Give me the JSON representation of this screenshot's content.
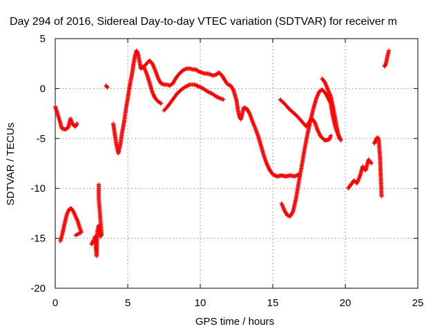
{
  "chart_data": {
    "type": "scatter",
    "title": "Day 294 of 2016, Sidereal Day-to-day VTEC variation (SDTVAR) for receiver m",
    "xlabel": "GPS time / hours",
    "ylabel": "SDTVAR / TECUs",
    "xlim": [
      0,
      25
    ],
    "ylim": [
      -20,
      5
    ],
    "xticks": [
      0,
      5,
      10,
      15,
      20,
      25
    ],
    "yticks": [
      -20,
      -15,
      -10,
      -5,
      0,
      5
    ],
    "grid": true,
    "marker": "+",
    "color": "#ff0000",
    "series": [
      {
        "points": [
          [
            0.0,
            -1.8
          ],
          [
            0.15,
            -2.5
          ],
          [
            0.3,
            -3.2
          ],
          [
            0.45,
            -4.0
          ],
          [
            0.7,
            -4.1
          ],
          [
            0.9,
            -3.9
          ],
          [
            1.05,
            -3.0
          ],
          [
            1.2,
            -3.6
          ],
          [
            1.4,
            -3.8
          ],
          [
            1.5,
            -3.5
          ]
        ]
      },
      {
        "points": [
          [
            0.35,
            -15.3
          ],
          [
            0.5,
            -14.5
          ],
          [
            0.65,
            -13.5
          ],
          [
            0.8,
            -12.6
          ],
          [
            0.95,
            -12.1
          ],
          [
            1.1,
            -12.0
          ],
          [
            1.25,
            -12.3
          ],
          [
            1.4,
            -12.8
          ],
          [
            1.55,
            -13.3
          ],
          [
            1.7,
            -14.0
          ],
          [
            1.8,
            -14.4
          ],
          [
            1.4,
            -14.7
          ]
        ]
      },
      {
        "points": [
          [
            2.5,
            -15.6
          ],
          [
            2.65,
            -15.2
          ],
          [
            2.75,
            -14.8
          ],
          [
            2.85,
            -16.8
          ],
          [
            2.9,
            -14.3
          ],
          [
            3.0,
            -13.7
          ],
          [
            3.1,
            -14.8
          ],
          [
            3.2,
            -14.7
          ],
          [
            3.0,
            -11.0
          ],
          [
            3.0,
            -9.6
          ]
        ]
      },
      {
        "points": [
          [
            3.5,
            0.3
          ],
          [
            3.6,
            0.1
          ],
          [
            3.55,
            0.2
          ]
        ]
      },
      {
        "points": [
          [
            4.0,
            -3.5
          ],
          [
            4.1,
            -4.5
          ],
          [
            4.2,
            -5.5
          ],
          [
            4.35,
            -6.5
          ],
          [
            4.5,
            -5.5
          ],
          [
            4.6,
            -4.5
          ],
          [
            4.75,
            -3.3
          ],
          [
            4.9,
            -1.8
          ],
          [
            5.0,
            -1.0
          ],
          [
            5.1,
            0.0
          ],
          [
            5.2,
            0.8
          ],
          [
            5.3,
            1.5
          ],
          [
            5.4,
            2.5
          ],
          [
            5.5,
            3.3
          ],
          [
            5.6,
            3.8
          ],
          [
            5.7,
            3.5
          ],
          [
            5.8,
            2.8
          ],
          [
            5.9,
            2.0
          ]
        ]
      },
      {
        "points": [
          [
            5.9,
            2.0
          ],
          [
            6.1,
            2.2
          ],
          [
            6.3,
            2.5
          ],
          [
            6.5,
            2.8
          ],
          [
            6.7,
            2.5
          ],
          [
            6.9,
            1.8
          ],
          [
            7.1,
            1.0
          ],
          [
            7.3,
            0.5
          ],
          [
            7.5,
            0.4
          ],
          [
            7.7,
            0.4
          ],
          [
            7.9,
            0.3
          ],
          [
            8.1,
            0.5
          ],
          [
            8.3,
            1.0
          ],
          [
            8.5,
            1.4
          ],
          [
            8.7,
            1.7
          ],
          [
            8.9,
            1.9
          ],
          [
            9.1,
            2.0
          ],
          [
            9.3,
            2.0
          ],
          [
            9.5,
            1.9
          ],
          [
            9.7,
            1.9
          ],
          [
            9.9,
            1.7
          ],
          [
            10.1,
            1.6
          ],
          [
            10.3,
            1.5
          ],
          [
            10.5,
            1.5
          ],
          [
            10.7,
            1.4
          ],
          [
            10.9,
            1.3
          ],
          [
            11.1,
            1.4
          ],
          [
            11.3,
            1.6
          ],
          [
            11.5,
            1.3
          ],
          [
            11.7,
            0.8
          ],
          [
            11.9,
            0.4
          ],
          [
            12.1,
            0.3
          ],
          [
            12.3,
            -0.2
          ],
          [
            12.5,
            -1.2
          ],
          [
            12.6,
            -2.2
          ],
          [
            12.7,
            -2.8
          ],
          [
            12.8,
            -3.1
          ],
          [
            12.9,
            -2.5
          ],
          [
            13.0,
            -1.9
          ],
          [
            13.2,
            -2.0
          ],
          [
            13.4,
            -2.5
          ],
          [
            13.6,
            -3.3
          ],
          [
            13.8,
            -4.0
          ],
          [
            14.0,
            -4.8
          ],
          [
            14.2,
            -5.8
          ],
          [
            14.4,
            -6.8
          ],
          [
            14.6,
            -7.6
          ],
          [
            14.8,
            -8.2
          ],
          [
            15.0,
            -8.6
          ],
          [
            15.3,
            -8.8
          ],
          [
            15.6,
            -8.7
          ],
          [
            15.9,
            -8.8
          ],
          [
            16.2,
            -8.7
          ],
          [
            16.5,
            -8.8
          ],
          [
            16.8,
            -8.6
          ]
        ]
      },
      {
        "points": [
          [
            6.1,
            2.2
          ],
          [
            6.3,
            1.5
          ],
          [
            6.5,
            0.6
          ],
          [
            6.7,
            -0.4
          ],
          [
            6.9,
            -1.0
          ],
          [
            7.1,
            -1.3
          ],
          [
            7.3,
            -1.5
          ]
        ]
      },
      {
        "points": [
          [
            7.5,
            -2.2
          ],
          [
            7.8,
            -1.7
          ],
          [
            8.1,
            -1.1
          ],
          [
            8.4,
            -0.5
          ],
          [
            8.7,
            -0.1
          ],
          [
            9.0,
            0.2
          ],
          [
            9.3,
            0.4
          ],
          [
            9.6,
            0.4
          ],
          [
            9.9,
            0.2
          ],
          [
            10.2,
            0.0
          ],
          [
            10.5,
            -0.3
          ],
          [
            10.8,
            -0.5
          ],
          [
            11.1,
            -0.8
          ],
          [
            11.4,
            -1.0
          ],
          [
            11.6,
            -1.1
          ]
        ]
      },
      {
        "points": [
          [
            15.6,
            -11.5
          ],
          [
            15.8,
            -12.2
          ],
          [
            16.0,
            -12.7
          ],
          [
            16.2,
            -12.8
          ],
          [
            16.4,
            -12.3
          ],
          [
            16.6,
            -11.0
          ],
          [
            16.8,
            -9.3
          ],
          [
            17.0,
            -7.7
          ],
          [
            17.2,
            -6.0
          ],
          [
            17.4,
            -4.5
          ],
          [
            17.6,
            -3.2
          ],
          [
            17.8,
            -2.0
          ],
          [
            18.0,
            -1.0
          ],
          [
            18.2,
            -0.3
          ],
          [
            18.4,
            -0.1
          ],
          [
            18.6,
            -0.4
          ],
          [
            18.8,
            -0.9
          ],
          [
            19.0,
            -1.5
          ],
          [
            19.1,
            -2.5
          ],
          [
            19.3,
            -3.8
          ],
          [
            19.5,
            -4.6
          ],
          [
            19.7,
            -5.2
          ]
        ]
      },
      {
        "points": [
          [
            15.5,
            -1.1
          ],
          [
            15.8,
            -1.5
          ],
          [
            16.1,
            -2.0
          ],
          [
            16.4,
            -2.4
          ],
          [
            16.7,
            -2.8
          ],
          [
            17.0,
            -3.3
          ],
          [
            17.3,
            -3.8
          ],
          [
            17.5,
            -3.4
          ],
          [
            17.7,
            -3.0
          ],
          [
            17.9,
            -3.4
          ],
          [
            18.1,
            -4.2
          ],
          [
            18.3,
            -4.8
          ],
          [
            18.6,
            -5.2
          ],
          [
            18.9,
            -5.1
          ],
          [
            19.0,
            -4.7
          ]
        ]
      },
      {
        "points": [
          [
            18.4,
            1.0
          ],
          [
            18.6,
            0.6
          ],
          [
            18.8,
            -0.1
          ],
          [
            19.0,
            -0.8
          ],
          [
            19.1,
            -1.5
          ],
          [
            19.2,
            -2.2
          ],
          [
            19.3,
            -3.0
          ],
          [
            19.4,
            -3.8
          ],
          [
            19.5,
            -4.5
          ],
          [
            19.6,
            -5.0
          ]
        ]
      },
      {
        "points": [
          [
            20.2,
            -10.0
          ],
          [
            20.4,
            -9.6
          ],
          [
            20.6,
            -9.2
          ],
          [
            20.8,
            -9.5
          ],
          [
            21.0,
            -8.8
          ],
          [
            21.2,
            -7.8
          ],
          [
            21.4,
            -8.2
          ],
          [
            21.6,
            -7.1
          ],
          [
            21.8,
            -7.5
          ]
        ]
      },
      {
        "points": [
          [
            22.0,
            -5.5
          ],
          [
            22.1,
            -5.2
          ],
          [
            22.2,
            -4.9
          ],
          [
            22.3,
            -5.0
          ],
          [
            22.4,
            -7.0
          ],
          [
            22.45,
            -9.0
          ],
          [
            22.5,
            -10.8
          ]
        ]
      },
      {
        "points": [
          [
            22.7,
            2.2
          ],
          [
            22.8,
            2.5
          ],
          [
            22.9,
            3.2
          ],
          [
            23.0,
            3.8
          ]
        ]
      }
    ]
  }
}
